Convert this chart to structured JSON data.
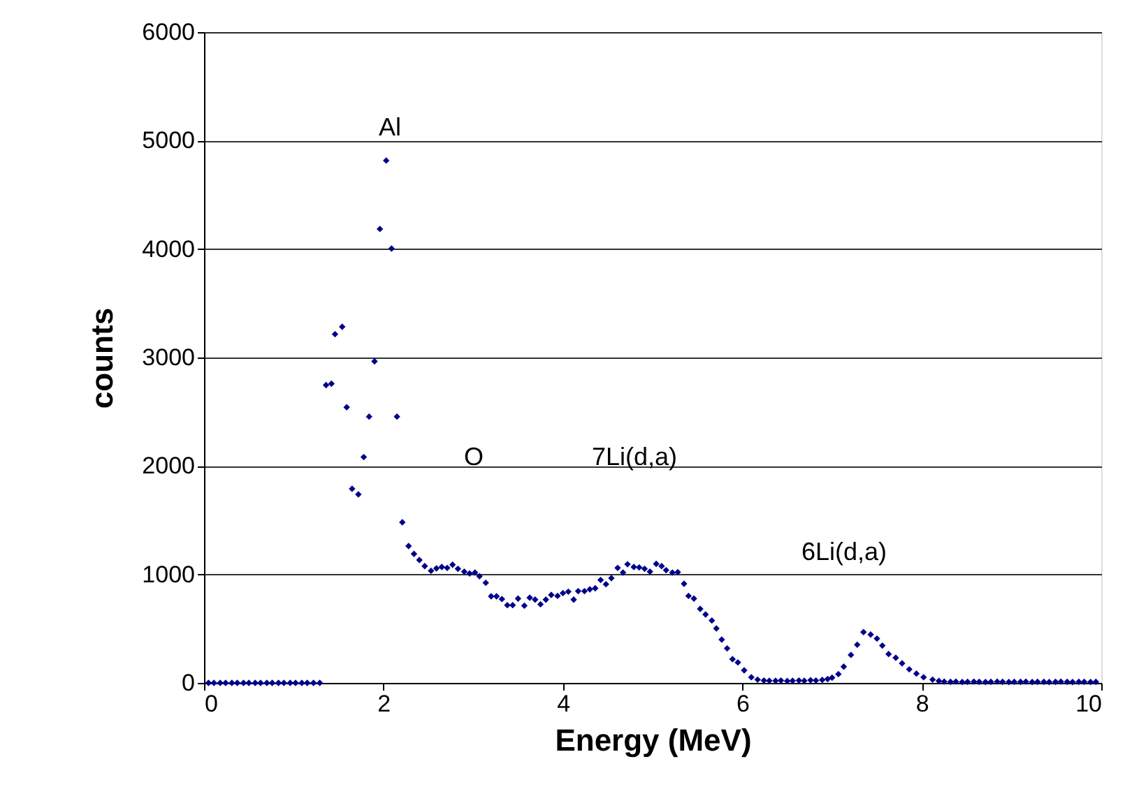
{
  "chart_data": {
    "type": "scatter",
    "xlabel": "Energy (MeV)",
    "ylabel": "counts",
    "xlim": [
      0,
      10
    ],
    "xticks": [
      0,
      2,
      4,
      6,
      8,
      10
    ],
    "ylim": [
      0,
      6000
    ],
    "yticks": [
      0,
      1000,
      2000,
      3000,
      4000,
      5000,
      6000
    ],
    "grid": "y",
    "marker": "diamond",
    "annotations": [
      "Al",
      "O",
      "7Li(d,a)",
      "6Li(d,a)"
    ],
    "series": [
      {
        "color": "#00008b",
        "x": [
          0.05,
          0.11,
          0.18,
          0.24,
          0.31,
          0.37,
          0.44,
          0.5,
          0.57,
          0.63,
          0.7,
          0.76,
          0.83,
          0.89,
          0.96,
          1.02,
          1.09,
          1.15,
          1.22,
          1.29,
          1.36,
          1.42,
          1.46,
          1.54,
          1.59,
          1.65,
          1.72,
          1.78,
          1.84,
          1.9,
          1.96,
          2.03,
          2.09,
          2.15,
          2.21,
          2.28,
          2.34,
          2.4,
          2.46,
          2.53,
          2.59,
          2.65,
          2.71,
          2.77,
          2.83,
          2.9,
          2.96,
          3.02,
          3.07,
          3.14,
          3.2,
          3.26,
          3.32,
          3.38,
          3.44,
          3.5,
          3.57,
          3.63,
          3.69,
          3.75,
          3.81,
          3.87,
          3.94,
          4.0,
          4.06,
          4.12,
          4.17,
          4.24,
          4.3,
          4.36,
          4.42,
          4.48,
          4.54,
          4.61,
          4.67,
          4.72,
          4.79,
          4.85,
          4.91,
          4.97,
          5.04,
          5.1,
          5.15,
          5.22,
          5.28,
          5.35,
          5.4,
          5.46,
          5.53,
          5.59,
          5.66,
          5.71,
          5.77,
          5.83,
          5.89,
          5.95,
          6.02,
          6.1,
          6.17,
          6.24,
          6.3,
          6.37,
          6.43,
          6.5,
          6.56,
          6.63,
          6.69,
          6.76,
          6.82,
          6.89,
          6.95,
          7.0,
          7.07,
          7.13,
          7.21,
          7.28,
          7.35,
          7.43,
          7.5,
          7.56,
          7.63,
          7.71,
          7.78,
          7.86,
          7.94,
          8.02,
          8.12,
          8.19,
          8.25,
          8.32,
          8.38,
          8.45,
          8.51,
          8.58,
          8.64,
          8.71,
          8.77,
          8.84,
          8.9,
          8.97,
          9.03,
          9.1,
          9.16,
          9.23,
          9.29,
          9.36,
          9.42,
          9.49,
          9.55,
          9.62,
          9.68,
          9.75,
          9.81,
          9.88,
          9.94
        ],
        "values": [
          0,
          0,
          0,
          0,
          0,
          0,
          0,
          0,
          0,
          0,
          0,
          0,
          0,
          0,
          0,
          0,
          0,
          0,
          0,
          0,
          2746,
          2759,
          3215,
          3283,
          2541,
          1790,
          1738,
          2082,
          2455,
          2965,
          4185,
          4816,
          4004,
          2455,
          1481,
          1262,
          1189,
          1133,
          1077,
          1034,
          1056,
          1069,
          1060,
          1090,
          1052,
          1026,
          1009,
          1017,
          983,
          923,
          798,
          798,
          773,
          717,
          717,
          777,
          712,
          785,
          768,
          725,
          768,
          811,
          802,
          828,
          841,
          768,
          846,
          846,
          863,
          872,
          949,
          910,
          966,
          1060,
          1017,
          1094,
          1069,
          1065,
          1052,
          1026,
          1098,
          1077,
          1039,
          1017,
          1021,
          914,
          802,
          777,
          682,
          631,
          575,
          502,
          399,
          318,
          219,
          189,
          116,
          52,
          30,
          22,
          20,
          20,
          22,
          18,
          20,
          22,
          20,
          25,
          22,
          28,
          35,
          48,
          81,
          150,
          258,
          352,
          468,
          446,
          408,
          344,
          266,
          232,
          180,
          125,
          86,
          52,
          30,
          18,
          12,
          10,
          12,
          8,
          10,
          12,
          10,
          8,
          10,
          12,
          10,
          8,
          10,
          10,
          12,
          8,
          10,
          10,
          8,
          10,
          12,
          10,
          8,
          10,
          10,
          8,
          10
        ]
      }
    ]
  }
}
